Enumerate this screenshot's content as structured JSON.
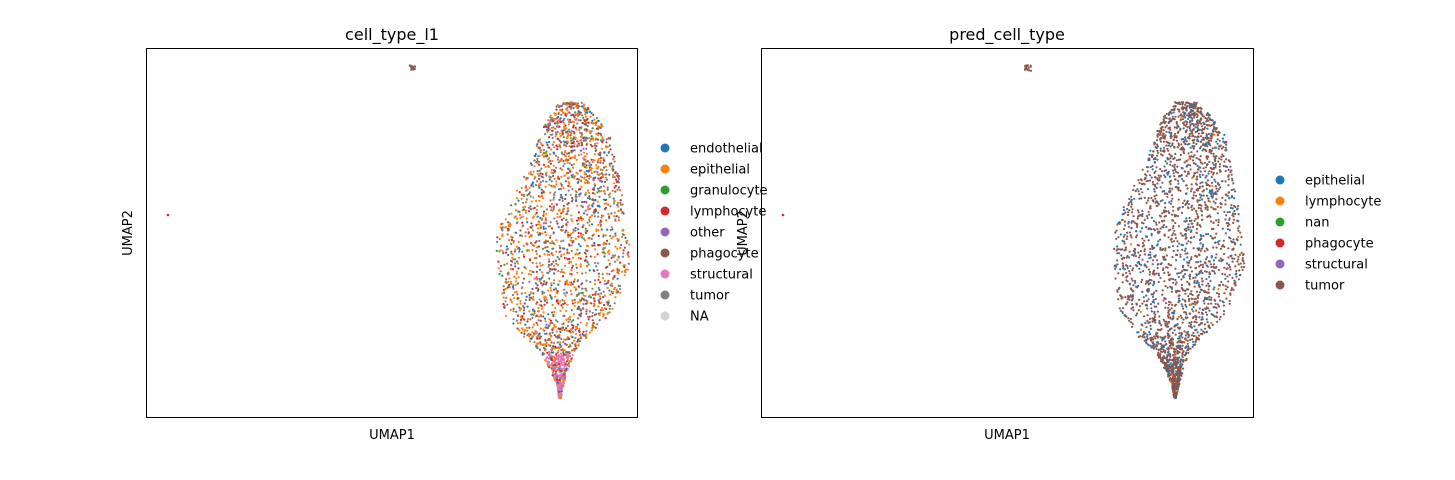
{
  "chart_data": [
    {
      "type": "scatter",
      "title": "cell_type_l1",
      "xlabel": "UMAP1",
      "ylabel": "UMAP2",
      "grid": false,
      "legend_placement": "right, outside",
      "legend": [
        {
          "name": "endothelial",
          "color": "#1f77b4"
        },
        {
          "name": "epithelial",
          "color": "#ff7f0e"
        },
        {
          "name": "granulocyte",
          "color": "#2ca02c"
        },
        {
          "name": "lymphocyte",
          "color": "#d62728"
        },
        {
          "name": "other",
          "color": "#9467bd"
        },
        {
          "name": "phagocyte",
          "color": "#8c564b"
        },
        {
          "name": "structural",
          "color": "#e377c2"
        },
        {
          "name": "tumor",
          "color": "#7f7f7f"
        },
        {
          "name": "NA",
          "color": "#d3d3d3"
        }
      ],
      "dominant_categories": [
        "epithelial",
        "tumor",
        "lymphocyte",
        "endothelial",
        "phagocyte"
      ]
    },
    {
      "type": "scatter",
      "title": "pred_cell_type",
      "xlabel": "UMAP1",
      "ylabel": "UMAP2",
      "grid": false,
      "legend_placement": "right, outside",
      "legend": [
        {
          "name": "epithelial",
          "color": "#1f77b4"
        },
        {
          "name": "lymphocyte",
          "color": "#ff7f0e"
        },
        {
          "name": "nan",
          "color": "#2ca02c"
        },
        {
          "name": "phagocyte",
          "color": "#d62728"
        },
        {
          "name": "structural",
          "color": "#9467bd"
        },
        {
          "name": "tumor",
          "color": "#8c564b"
        }
      ],
      "dominant_categories": [
        "tumor",
        "epithelial"
      ]
    }
  ]
}
